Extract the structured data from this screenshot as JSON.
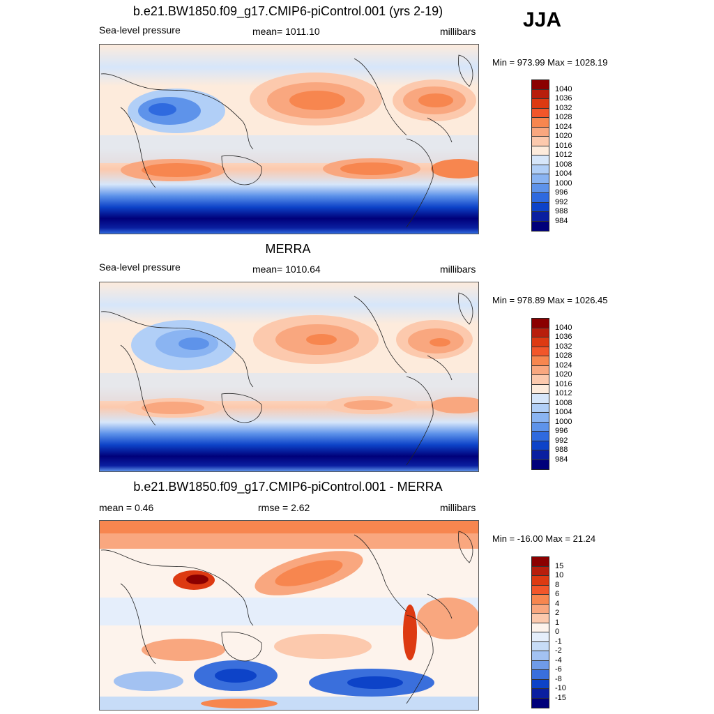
{
  "season": "JJA",
  "panels": [
    {
      "title": "b.e21.BW1850.f09_g17.CMIP6-piControl.001 (yrs 2-19)",
      "left_label": "Sea-level pressure",
      "center_label": "mean= 1011.10",
      "right_label": "millibars",
      "minmax": "Min = 973.99 Max = 1028.19",
      "colorbar": {
        "labels": [
          "1040",
          "1036",
          "1032",
          "1028",
          "1024",
          "1020",
          "1016",
          "1012",
          "1008",
          "1004",
          "1000",
          "996",
          "992",
          "988",
          "984"
        ],
        "colors": [
          "#8b0000",
          "#b81e0c",
          "#dd3a12",
          "#f2562a",
          "#f7864f",
          "#f9a77f",
          "#fcc9ad",
          "#fdebdc",
          "#d6e6fa",
          "#b1cff7",
          "#8ab4f2",
          "#5e93ea",
          "#2f6adf",
          "#0d43c8",
          "#0a1fa0",
          "#00007a"
        ]
      }
    },
    {
      "title": "MERRA",
      "left_label": "Sea-level pressure",
      "center_label": "mean= 1010.64",
      "right_label": "millibars",
      "minmax": "Min = 978.89 Max = 1026.45",
      "colorbar": {
        "labels": [
          "1040",
          "1036",
          "1032",
          "1028",
          "1024",
          "1020",
          "1016",
          "1012",
          "1008",
          "1004",
          "1000",
          "996",
          "992",
          "988",
          "984"
        ],
        "colors": [
          "#8b0000",
          "#b81e0c",
          "#dd3a12",
          "#f2562a",
          "#f7864f",
          "#f9a77f",
          "#fcc9ad",
          "#fdebdc",
          "#d6e6fa",
          "#b1cff7",
          "#8ab4f2",
          "#5e93ea",
          "#2f6adf",
          "#0d43c8",
          "#0a1fa0",
          "#00007a"
        ]
      }
    },
    {
      "title": "b.e21.BW1850.f09_g17.CMIP6-piControl.001 - MERRA",
      "left_label": "mean =   0.46",
      "center_label": "rmse =   2.62",
      "right_label": "millibars",
      "minmax": "Min = -16.00 Max =  21.24",
      "colorbar": {
        "labels": [
          "15",
          "10",
          "8",
          "6",
          "4",
          "2",
          "1",
          "0",
          "-1",
          "-2",
          "-4",
          "-6",
          "-8",
          "-10",
          "-15"
        ],
        "colors": [
          "#8b0000",
          "#b81e0c",
          "#dd3a12",
          "#f2562a",
          "#f7864f",
          "#f9a77f",
          "#fcc9ad",
          "#fdf3ec",
          "#e5eefb",
          "#c7dcf7",
          "#a3c2f2",
          "#6f9be8",
          "#3a6fdc",
          "#0d43c8",
          "#0a1fa0",
          "#00007a"
        ]
      }
    }
  ]
}
